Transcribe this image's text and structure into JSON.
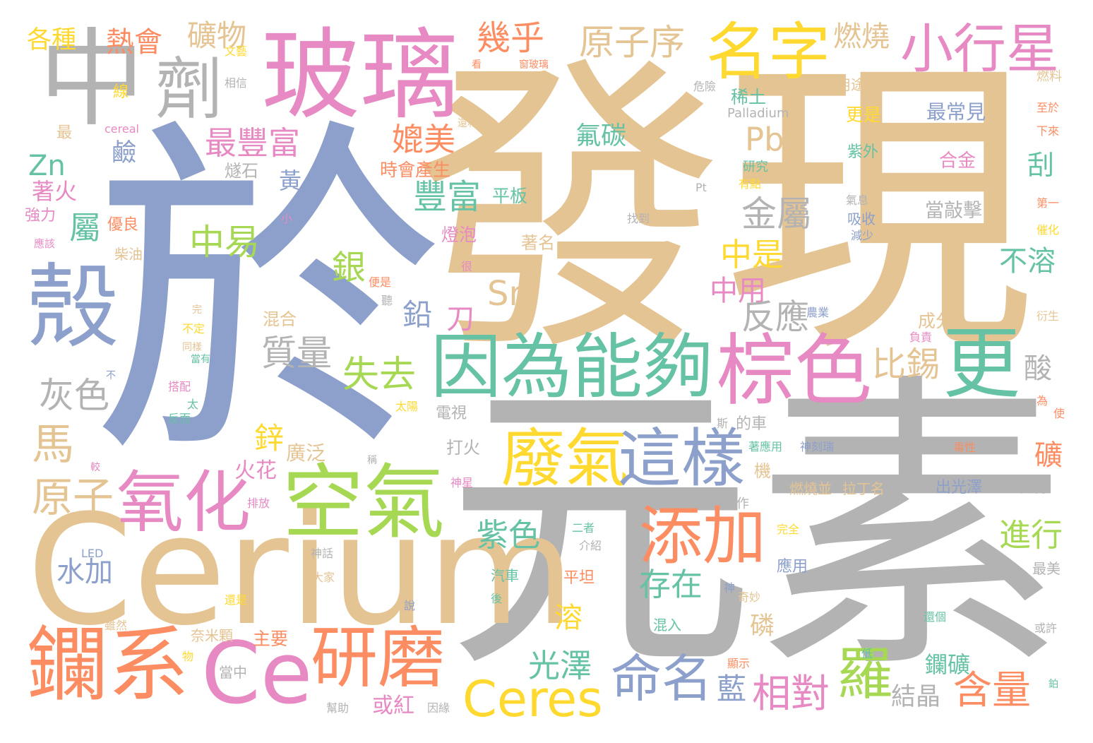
{
  "palette": {
    "gold": "#e5c494",
    "blue": "#8da0cb",
    "gray": "#b3b3b3",
    "pink": "#e78ac3",
    "green": "#a6d854",
    "teal": "#66c2a5",
    "orange": "#fc8d62",
    "yellow": "#ffd92f"
  },
  "words": [
    {
      "text": "發現",
      "color": "gold"
    },
    {
      "text": "於",
      "color": "blue"
    },
    {
      "text": "元素",
      "color": "gray"
    },
    {
      "text": "Cerium",
      "color": "gold"
    },
    {
      "text": "玻璃",
      "color": "pink"
    },
    {
      "text": "中",
      "color": "gray"
    },
    {
      "text": "因為能夠",
      "color": "teal"
    },
    {
      "text": "棕色",
      "color": "pink"
    },
    {
      "text": "空氣",
      "color": "green"
    },
    {
      "text": "鑭系",
      "color": "orange"
    },
    {
      "text": "名字",
      "color": "yellow"
    },
    {
      "text": "小行星",
      "color": "pink"
    },
    {
      "text": "劑",
      "color": "gray"
    },
    {
      "text": "更",
      "color": "teal"
    },
    {
      "text": "殼",
      "color": "blue"
    },
    {
      "text": "氧化",
      "color": "pink"
    },
    {
      "text": "廢氣",
      "color": "yellow"
    },
    {
      "text": "這樣",
      "color": "blue"
    },
    {
      "text": "添加",
      "color": "orange"
    },
    {
      "text": "研磨",
      "color": "orange"
    },
    {
      "text": "Ce",
      "color": "pink"
    },
    {
      "text": "Ceres",
      "color": "yellow"
    },
    {
      "text": "命名",
      "color": "blue"
    },
    {
      "text": "羅",
      "color": "green"
    },
    {
      "text": "相對",
      "color": "pink"
    },
    {
      "text": "含量",
      "color": "orange"
    },
    {
      "text": "幾乎",
      "color": "orange"
    },
    {
      "text": "原子序",
      "color": "gold"
    },
    {
      "text": "燃燒",
      "color": "gold"
    },
    {
      "text": "熱會",
      "color": "orange"
    },
    {
      "text": "礦物",
      "color": "gold"
    },
    {
      "text": "各種",
      "color": "yellow"
    },
    {
      "text": "最豐富",
      "color": "pink"
    },
    {
      "text": "媲美",
      "color": "orange"
    },
    {
      "text": "Pb",
      "color": "gold"
    },
    {
      "text": "氟碳",
      "color": "teal"
    },
    {
      "text": "豐富",
      "color": "teal"
    },
    {
      "text": "中易",
      "color": "green"
    },
    {
      "text": "屬",
      "color": "teal"
    },
    {
      "text": "金屬",
      "color": "gray"
    },
    {
      "text": "中是",
      "color": "yellow"
    },
    {
      "text": "中用",
      "color": "pink"
    },
    {
      "text": "Sn",
      "color": "gold"
    },
    {
      "text": "銀",
      "color": "green"
    },
    {
      "text": "鉛",
      "color": "blue"
    },
    {
      "text": "刀",
      "color": "pink"
    },
    {
      "text": "質量",
      "color": "gray"
    },
    {
      "text": "失去",
      "color": "green"
    },
    {
      "text": "比錫",
      "color": "gold"
    },
    {
      "text": "反應",
      "color": "gray"
    },
    {
      "text": "灰色",
      "color": "gray"
    },
    {
      "text": "馬",
      "color": "gold"
    },
    {
      "text": "原子",
      "color": "gold"
    },
    {
      "text": "水加",
      "color": "blue"
    },
    {
      "text": "紫色",
      "color": "teal"
    },
    {
      "text": "存在",
      "color": "teal"
    },
    {
      "text": "光澤",
      "color": "teal"
    },
    {
      "text": "藍",
      "color": "blue"
    },
    {
      "text": "結晶",
      "color": "gray"
    },
    {
      "text": "或紅",
      "color": "pink"
    },
    {
      "text": "進行",
      "color": "green"
    },
    {
      "text": "不溶",
      "color": "teal"
    },
    {
      "text": "酸",
      "color": "gray"
    },
    {
      "text": "礦",
      "color": "orange"
    },
    {
      "text": "鋅",
      "color": "yellow"
    },
    {
      "text": "火花",
      "color": "pink"
    },
    {
      "text": "廣泛",
      "color": "gold"
    },
    {
      "text": "溶",
      "color": "yellow"
    },
    {
      "text": "磷",
      "color": "gold"
    },
    {
      "text": "鑭礦",
      "color": "teal"
    },
    {
      "text": "Zn",
      "color": "teal"
    },
    {
      "text": "著火",
      "color": "pink"
    },
    {
      "text": "鹼",
      "color": "blue"
    },
    {
      "text": "燧石",
      "color": "gray"
    },
    {
      "text": "黃",
      "color": "blue"
    },
    {
      "text": "時會產生",
      "color": "orange"
    },
    {
      "text": "平板",
      "color": "teal"
    },
    {
      "text": "燈泡",
      "color": "pink"
    },
    {
      "text": "著名",
      "color": "gold"
    },
    {
      "text": "最常見",
      "color": "blue"
    },
    {
      "text": "合金",
      "color": "pink"
    },
    {
      "text": "當敲擊",
      "color": "gray"
    },
    {
      "text": "刮",
      "color": "teal"
    },
    {
      "text": "稀土",
      "color": "teal"
    },
    {
      "text": "Palladium",
      "color": "gray"
    },
    {
      "text": "更是",
      "color": "yellow"
    },
    {
      "text": "紫外",
      "color": "teal"
    },
    {
      "text": "吸收",
      "color": "blue"
    },
    {
      "text": "減少",
      "color": "blue"
    },
    {
      "text": "氣息",
      "color": "gray"
    },
    {
      "text": "用途",
      "color": "gold"
    },
    {
      "text": "危險",
      "color": "gray"
    },
    {
      "text": "研究",
      "color": "teal"
    },
    {
      "text": "有點",
      "color": "yellow"
    },
    {
      "text": "Pt",
      "color": "gray"
    },
    {
      "text": "找到",
      "color": "gray"
    },
    {
      "text": "強力",
      "color": "pink"
    },
    {
      "text": "優良",
      "color": "orange"
    },
    {
      "text": "柴油",
      "color": "gold"
    },
    {
      "text": "應該",
      "color": "pink"
    },
    {
      "text": "小",
      "color": "pink"
    },
    {
      "text": "很",
      "color": "pink"
    },
    {
      "text": "便是",
      "color": "orange"
    },
    {
      "text": "聽",
      "color": "gray"
    },
    {
      "text": "混合",
      "color": "gold"
    },
    {
      "text": "成分",
      "color": "gold"
    },
    {
      "text": "農業",
      "color": "blue"
    },
    {
      "text": "負責",
      "color": "pink"
    },
    {
      "text": "電視",
      "color": "gray"
    },
    {
      "text": "斯",
      "color": "gray"
    },
    {
      "text": "的車",
      "color": "gray"
    },
    {
      "text": "打火",
      "color": "gray"
    },
    {
      "text": "機",
      "color": "gold"
    },
    {
      "text": "著應用",
      "color": "teal"
    },
    {
      "text": "神刻瑞",
      "color": "blue"
    },
    {
      "text": "活潑",
      "color": "gray"
    },
    {
      "text": "毒性",
      "color": "orange"
    },
    {
      "text": "神星",
      "color": "pink"
    },
    {
      "text": "燃燒並",
      "color": "gold"
    },
    {
      "text": "拉丁名",
      "color": "gold"
    },
    {
      "text": "出光澤",
      "color": "blue"
    },
    {
      "text": "眼鏡",
      "color": "gray"
    },
    {
      "text": "粒作",
      "color": "gray"
    },
    {
      "text": "排放",
      "color": "pink"
    },
    {
      "text": "二者",
      "color": "teal"
    },
    {
      "text": "介紹",
      "color": "gray"
    },
    {
      "text": "完全",
      "color": "yellow"
    },
    {
      "text": "應用",
      "color": "blue"
    },
    {
      "text": "最美",
      "color": "gray"
    },
    {
      "text": "LED",
      "color": "blue"
    },
    {
      "text": "神話",
      "color": "gray"
    },
    {
      "text": "大家",
      "color": "gold"
    },
    {
      "text": "汽車",
      "color": "teal"
    },
    {
      "text": "平坦",
      "color": "orange"
    },
    {
      "text": "神",
      "color": "blue"
    },
    {
      "text": "奇妙",
      "color": "gold"
    },
    {
      "text": "還是",
      "color": "yellow"
    },
    {
      "text": "後",
      "color": "teal"
    },
    {
      "text": "混入",
      "color": "teal"
    },
    {
      "text": "還個",
      "color": "teal"
    },
    {
      "text": "說",
      "color": "blue"
    },
    {
      "text": "主要",
      "color": "orange"
    },
    {
      "text": "奈米顆",
      "color": "gold"
    },
    {
      "text": "雖然",
      "color": "gold"
    },
    {
      "text": "物",
      "color": "yellow"
    },
    {
      "text": "當中",
      "color": "gray"
    },
    {
      "text": "低",
      "color": "teal"
    },
    {
      "text": "顯示",
      "color": "orange"
    },
    {
      "text": "或許",
      "color": "gray"
    },
    {
      "text": "鉑",
      "color": "teal"
    },
    {
      "text": "幫助",
      "color": "gray"
    },
    {
      "text": "因緣",
      "color": "gray"
    },
    {
      "text": "太陽",
      "color": "yellow"
    },
    {
      "text": "搭配",
      "color": "pink"
    },
    {
      "text": "太",
      "color": "teal"
    },
    {
      "text": "反而",
      "color": "teal"
    },
    {
      "text": "不定",
      "color": "yellow"
    },
    {
      "text": "完",
      "color": "gold"
    },
    {
      "text": "同樣",
      "color": "gold"
    },
    {
      "text": "當有",
      "color": "teal"
    },
    {
      "text": "不",
      "color": "blue"
    },
    {
      "text": "較",
      "color": "pink"
    },
    {
      "text": "稱",
      "color": "gray"
    },
    {
      "text": "為",
      "color": "orange"
    },
    {
      "text": "使",
      "color": "orange"
    },
    {
      "text": "衍生",
      "color": "gold"
    },
    {
      "text": "催化",
      "color": "yellow"
    },
    {
      "text": "第一",
      "color": "orange"
    },
    {
      "text": "下來",
      "color": "orange"
    },
    {
      "text": "至於",
      "color": "orange"
    },
    {
      "text": "燃料",
      "color": "gold"
    },
    {
      "text": "文藝",
      "color": "yellow"
    },
    {
      "text": "相信",
      "color": "gray"
    },
    {
      "text": "線",
      "color": "yellow"
    },
    {
      "text": "最",
      "color": "gold"
    },
    {
      "text": "cereal",
      "color": "pink"
    },
    {
      "text": "還和",
      "color": "gold"
    },
    {
      "text": "看",
      "color": "orange"
    },
    {
      "text": "窗玻璃",
      "color": "orange"
    }
  ]
}
